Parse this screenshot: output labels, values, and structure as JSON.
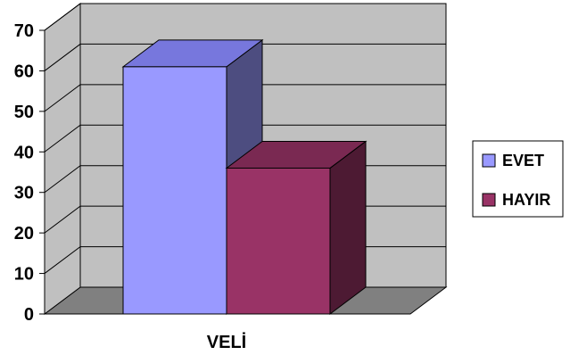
{
  "chart_data": {
    "type": "bar",
    "three_d": true,
    "categories": [
      "VELİ"
    ],
    "series": [
      {
        "name": "EVET",
        "values": [
          61
        ],
        "color": "#9999ff",
        "top_color": "#7777dd",
        "side_color": "#4d4d80"
      },
      {
        "name": "HAYIR",
        "values": [
          36
        ],
        "color": "#993366",
        "top_color": "#7a2952",
        "side_color": "#4d1a33"
      }
    ],
    "ylim": [
      0,
      70
    ],
    "yticks": [
      "0",
      "10",
      "20",
      "30",
      "40",
      "50",
      "60",
      "70"
    ],
    "grid": true,
    "legend": "right",
    "colors": {
      "wall": "#c0c0c0",
      "floor": "#808080",
      "gridline": "#000000"
    }
  }
}
